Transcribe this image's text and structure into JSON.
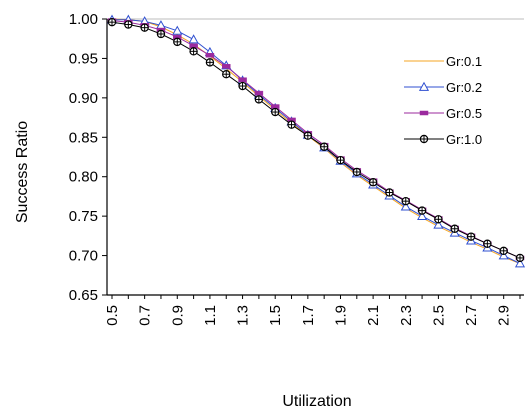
{
  "chart_data": {
    "type": "line",
    "title": "",
    "xlabel": "Utilization",
    "ylabel": "Success Ratio",
    "ylim": [
      0.65,
      1.0
    ],
    "yticks": [
      "0.65",
      "0.70",
      "0.75",
      "0.80",
      "0.85",
      "0.90",
      "0.95",
      "1.00"
    ],
    "xticks": [
      "0.5",
      "0.7",
      "0.9",
      "1.1",
      "1.3",
      "1.5",
      "1.7",
      "1.9",
      "2.1",
      "2.3",
      "2.5",
      "2.7",
      "2.9"
    ],
    "x": [
      0.5,
      0.6,
      0.7,
      0.8,
      0.9,
      1.0,
      1.1,
      1.2,
      1.3,
      1.4,
      1.5,
      1.6,
      1.7,
      1.8,
      1.9,
      2.0,
      2.1,
      2.2,
      2.3,
      2.4,
      2.5,
      2.6,
      2.7,
      2.8,
      2.9,
      3.0
    ],
    "grid": false,
    "legend_position": "right",
    "series": [
      {
        "name": "Gr:0.1",
        "color": "#F5A623",
        "marker": "none",
        "values": [
          1.0,
          0.999,
          0.997,
          0.99,
          0.98,
          0.968,
          0.953,
          0.937,
          0.92,
          0.902,
          0.885,
          0.868,
          0.852,
          0.836,
          0.818,
          0.802,
          0.788,
          0.774,
          0.76,
          0.748,
          0.737,
          0.727,
          0.717,
          0.708,
          0.698,
          0.69
        ]
      },
      {
        "name": "Gr:0.2",
        "color": "#2F4FD0",
        "marker": "triangle",
        "values": [
          0.999,
          0.999,
          0.997,
          0.992,
          0.985,
          0.974,
          0.958,
          0.941,
          0.922,
          0.904,
          0.887,
          0.87,
          0.853,
          0.837,
          0.82,
          0.804,
          0.79,
          0.776,
          0.762,
          0.75,
          0.739,
          0.729,
          0.719,
          0.71,
          0.7,
          0.69
        ]
      },
      {
        "name": "Gr:0.5",
        "color": "#9B2A9E",
        "marker": "rect",
        "values": [
          0.998,
          0.996,
          0.992,
          0.986,
          0.977,
          0.966,
          0.954,
          0.94,
          0.923,
          0.906,
          0.889,
          0.872,
          0.855,
          0.84,
          0.823,
          0.808,
          0.795,
          0.781,
          0.77,
          0.758,
          0.747,
          0.735,
          0.725,
          0.715,
          0.706,
          0.697
        ]
      },
      {
        "name": "Gr:1.0",
        "color": "#000000",
        "marker": "circle",
        "values": [
          0.996,
          0.993,
          0.989,
          0.981,
          0.971,
          0.959,
          0.945,
          0.93,
          0.915,
          0.898,
          0.882,
          0.866,
          0.852,
          0.838,
          0.821,
          0.806,
          0.793,
          0.78,
          0.769,
          0.757,
          0.746,
          0.734,
          0.724,
          0.715,
          0.706,
          0.697
        ]
      }
    ]
  }
}
